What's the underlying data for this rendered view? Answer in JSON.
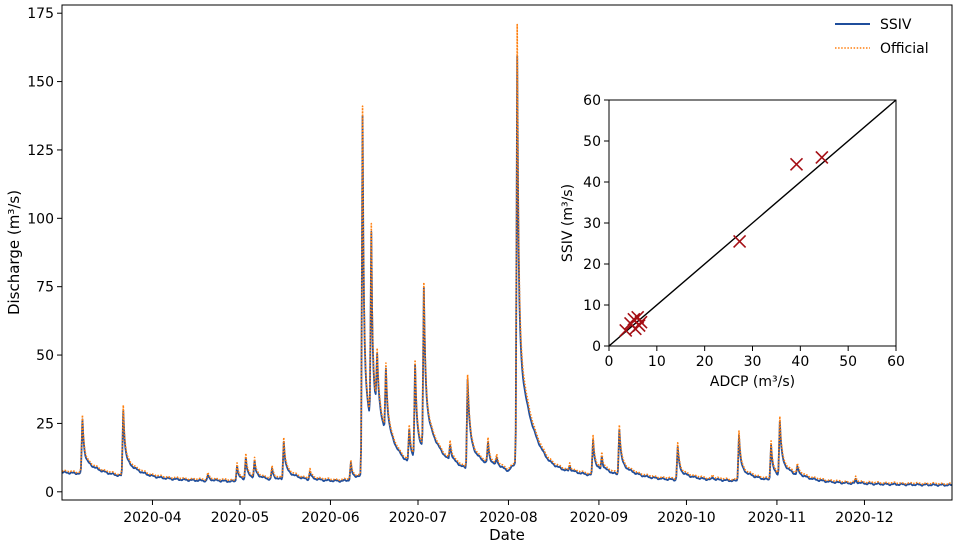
{
  "chart_data": [
    {
      "type": "line",
      "xlabel": "Date",
      "ylabel": "Discharge (m³/s)",
      "xlim": [
        "2020-03-01",
        "2020-12-31"
      ],
      "ylim": [
        -3,
        178
      ],
      "xticks": [
        "2020-04",
        "2020-05",
        "2020-06",
        "2020-07",
        "2020-08",
        "2020-09",
        "2020-10",
        "2020-11",
        "2020-12"
      ],
      "yticks": [
        0,
        25,
        50,
        75,
        100,
        125,
        150,
        175
      ],
      "legend": {
        "placement": "top-right",
        "entries": [
          "SSIV",
          "Official"
        ]
      },
      "colors": {
        "SSIV": "#1f4e9c",
        "Official": "#ff7f0e"
      },
      "baseline": [
        [
          "2020-03-01",
          7.5
        ],
        [
          "2020-03-10",
          6.8
        ],
        [
          "2020-03-20",
          5.8
        ],
        [
          "2020-04-01",
          5.0
        ],
        [
          "2020-04-15",
          4.5
        ],
        [
          "2020-04-28",
          4.1
        ],
        [
          "2020-05-10",
          4.3
        ],
        [
          "2020-05-25",
          4.0
        ],
        [
          "2020-06-05",
          4.2
        ],
        [
          "2020-06-10",
          5.0
        ],
        [
          "2020-06-20",
          7.0
        ],
        [
          "2020-07-01",
          7.5
        ],
        [
          "2020-07-15",
          6.8
        ],
        [
          "2020-08-01",
          6.0
        ],
        [
          "2020-08-05",
          12.0
        ],
        [
          "2020-08-15",
          7.5
        ],
        [
          "2020-09-01",
          6.0
        ],
        [
          "2020-09-15",
          5.0
        ],
        [
          "2020-10-01",
          4.5
        ],
        [
          "2020-10-15",
          4.3
        ],
        [
          "2020-11-01",
          4.0
        ],
        [
          "2020-11-15",
          3.8
        ],
        [
          "2020-12-01",
          3.2
        ],
        [
          "2020-12-31",
          2.8
        ]
      ],
      "peaks": [
        {
          "date": "2020-03-08",
          "ssiv": 20,
          "official": 21,
          "width": 1.5
        },
        {
          "date": "2020-03-22",
          "ssiv": 24,
          "official": 25.5,
          "width": 1.5
        },
        {
          "date": "2020-04-20",
          "ssiv": 2,
          "official": 2.5,
          "width": 1
        },
        {
          "date": "2020-04-30",
          "ssiv": 6,
          "official": 6.5,
          "width": 1
        },
        {
          "date": "2020-05-03",
          "ssiv": 8,
          "official": 9,
          "width": 1
        },
        {
          "date": "2020-05-06",
          "ssiv": 6,
          "official": 6.5,
          "width": 1
        },
        {
          "date": "2020-05-12",
          "ssiv": 4,
          "official": 4.5,
          "width": 1
        },
        {
          "date": "2020-05-16",
          "ssiv": 14,
          "official": 15,
          "width": 1.5
        },
        {
          "date": "2020-05-25",
          "ssiv": 3,
          "official": 3.5,
          "width": 1
        },
        {
          "date": "2020-06-08",
          "ssiv": 6,
          "official": 6.5,
          "width": 1
        },
        {
          "date": "2020-06-12",
          "ssiv": 132,
          "official": 135,
          "width": 1.2
        },
        {
          "date": "2020-06-15",
          "ssiv": 70,
          "official": 72,
          "width": 1
        },
        {
          "date": "2020-06-17",
          "ssiv": 20,
          "official": 21,
          "width": 1.5
        },
        {
          "date": "2020-06-20",
          "ssiv": 24,
          "official": 25,
          "width": 1.5
        },
        {
          "date": "2020-06-28",
          "ssiv": 12,
          "official": 13,
          "width": 1.5
        },
        {
          "date": "2020-06-30",
          "ssiv": 34,
          "official": 35,
          "width": 1.5
        },
        {
          "date": "2020-07-03",
          "ssiv": 59,
          "official": 60,
          "width": 1.5
        },
        {
          "date": "2020-07-12",
          "ssiv": 6,
          "official": 7,
          "width": 1.5
        },
        {
          "date": "2020-07-18",
          "ssiv": 33,
          "official": 34,
          "width": 2
        },
        {
          "date": "2020-07-25",
          "ssiv": 8,
          "official": 9,
          "width": 1
        },
        {
          "date": "2020-07-28",
          "ssiv": 3,
          "official": 3.5,
          "width": 1
        },
        {
          "date": "2020-08-04",
          "ssiv": 148,
          "official": 159,
          "width": 1.3
        },
        {
          "date": "2020-08-22",
          "ssiv": 2,
          "official": 2.5,
          "width": 1
        },
        {
          "date": "2020-08-30",
          "ssiv": 13,
          "official": 14,
          "width": 1.5
        },
        {
          "date": "2020-09-02",
          "ssiv": 5,
          "official": 6,
          "width": 1
        },
        {
          "date": "2020-09-08",
          "ssiv": 17,
          "official": 18,
          "width": 1.5
        },
        {
          "date": "2020-09-28",
          "ssiv": 12,
          "official": 13,
          "width": 1.5
        },
        {
          "date": "2020-10-10",
          "ssiv": 1,
          "official": 1.5,
          "width": 1
        },
        {
          "date": "2020-10-19",
          "ssiv": 17,
          "official": 18,
          "width": 1.5
        },
        {
          "date": "2020-10-30",
          "ssiv": 13,
          "official": 14,
          "width": 1.3
        },
        {
          "date": "2020-11-02",
          "ssiv": 20,
          "official": 21,
          "width": 1.5
        },
        {
          "date": "2020-11-08",
          "ssiv": 3,
          "official": 3.5,
          "width": 1.5
        },
        {
          "date": "2020-11-28",
          "ssiv": 1.5,
          "official": 2,
          "width": 1
        }
      ]
    },
    {
      "type": "scatter",
      "xlabel": "ADCP (m³/s)",
      "ylabel": "SSIV (m³/s)",
      "xlim": [
        0,
        60
      ],
      "ylim": [
        0,
        60
      ],
      "xticks": [
        0,
        10,
        20,
        30,
        40,
        50,
        60
      ],
      "yticks": [
        0,
        10,
        20,
        30,
        40,
        50,
        60
      ],
      "identity_line": [
        [
          0,
          0
        ],
        [
          60,
          60
        ]
      ],
      "marker_color": "#a50f15",
      "points": [
        [
          3.5,
          3.8
        ],
        [
          4.5,
          5.5
        ],
        [
          5.2,
          6.5
        ],
        [
          5.5,
          4.2
        ],
        [
          6.0,
          7.0
        ],
        [
          6.3,
          5.0
        ],
        [
          6.7,
          5.8
        ],
        [
          27.3,
          25.5
        ],
        [
          39.2,
          44.3
        ],
        [
          44.5,
          46.0
        ]
      ]
    }
  ]
}
